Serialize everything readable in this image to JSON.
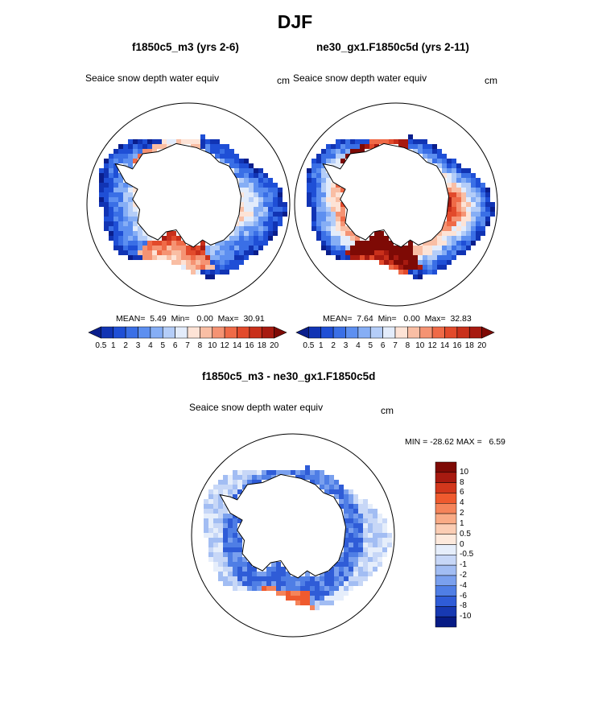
{
  "page": {
    "season": "DJF"
  },
  "palette": {
    "seq": [
      "#0a1e8c",
      "#1134b4",
      "#1f4fd6",
      "#3a6fe6",
      "#5d8ff0",
      "#86aef5",
      "#b4cdf8",
      "#e3ecfb",
      "#fde3d6",
      "#f9bea4",
      "#f59373",
      "#ef6a47",
      "#e24a2b",
      "#c9301b",
      "#a71a10",
      "#7e0a05"
    ],
    "div": [
      "#7e0a05",
      "#a71a10",
      "#d2371c",
      "#ef5a2e",
      "#f5845a",
      "#f9ab86",
      "#fbcdb4",
      "#fde9dc",
      "#e6eefb",
      "#c7d7f7",
      "#a2bdf3",
      "#7aa0ee",
      "#4f7ee5",
      "#2f5cd7",
      "#1739b2",
      "#071b85"
    ]
  },
  "panels": [
    {
      "title": "f1850c5_m3 (yrs 2-6)",
      "field_label": "Seaice snow depth water equiv",
      "units": "cm",
      "stats": "MEAN=  5.49  Min=   0.00  Max=  30.91",
      "chart_data": {
        "type": "heatmap",
        "projection": "south polar stereographic",
        "variable": "Seaice snow depth water equiv",
        "units": "cm",
        "mean": 5.49,
        "min": 0.0,
        "max": 30.91,
        "colorbar_levels": [
          "0.5",
          "1",
          "2",
          "3",
          "4",
          "5",
          "6",
          "7",
          "8",
          "10",
          "12",
          "14",
          "16",
          "18",
          "20"
        ]
      }
    },
    {
      "title": "ne30_gx1.F1850c5d (yrs 2-11)",
      "field_label": "Seaice snow depth water equiv",
      "units": "cm",
      "stats": "MEAN=  7.64  Min=   0.00  Max=  32.83",
      "chart_data": {
        "type": "heatmap",
        "projection": "south polar stereographic",
        "variable": "Seaice snow depth water equiv",
        "units": "cm",
        "mean": 7.64,
        "min": 0.0,
        "max": 32.83,
        "colorbar_levels": [
          "0.5",
          "1",
          "2",
          "3",
          "4",
          "5",
          "6",
          "7",
          "8",
          "10",
          "12",
          "14",
          "16",
          "18",
          "20"
        ]
      }
    },
    {
      "title": "f1850c5_m3 - ne30_gx1.F1850c5d",
      "field_label": "Seaice snow depth water equiv",
      "units": "cm",
      "stats": "MIN = -28.62 MAX =   6.59",
      "chart_data": {
        "type": "heatmap",
        "projection": "south polar stereographic",
        "variable": "Seaice snow depth water equiv (difference)",
        "units": "cm",
        "min": -28.62,
        "max": 6.59,
        "colorbar_levels": [
          "10",
          "8",
          "6",
          "4",
          "2",
          "1",
          "0.5",
          "0",
          "-0.5",
          "-1",
          "-2",
          "-4",
          "-6",
          "-8",
          "-10"
        ]
      }
    }
  ]
}
